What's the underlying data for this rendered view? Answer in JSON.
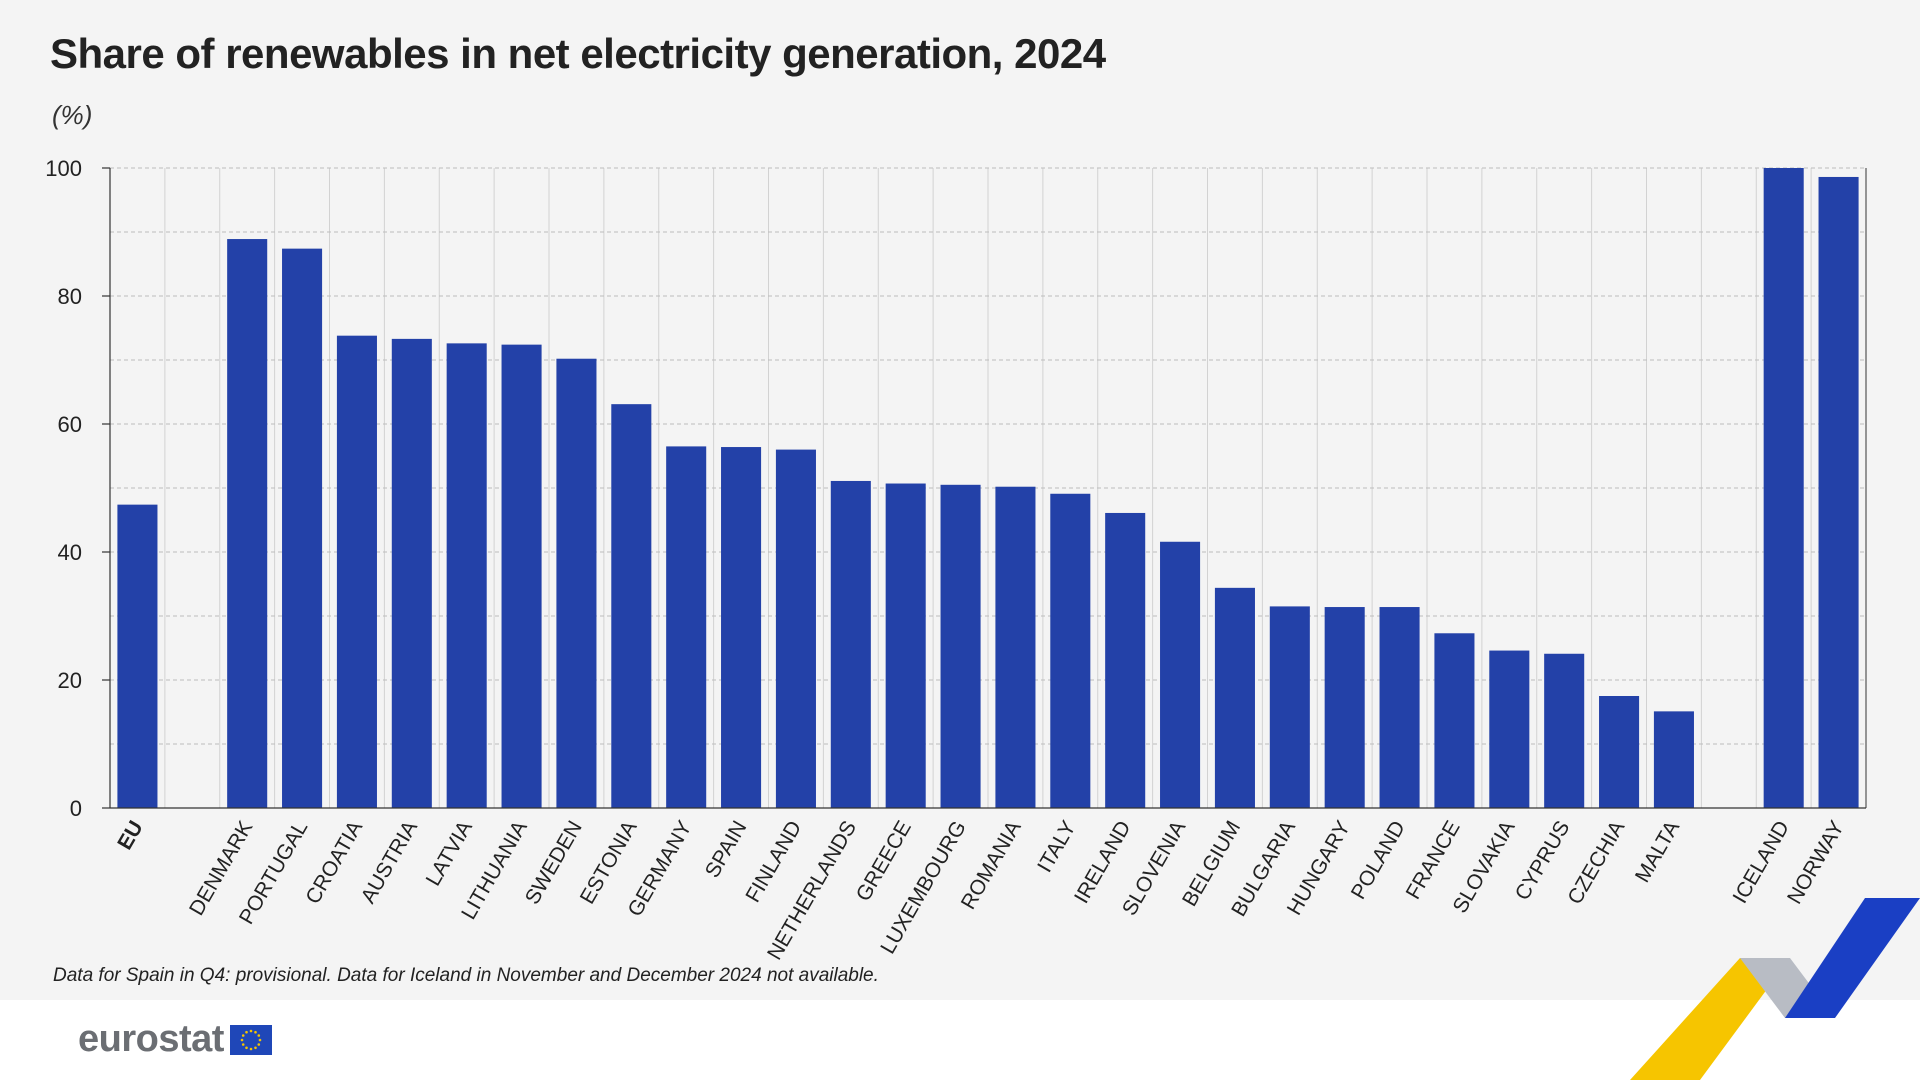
{
  "chart_data": {
    "type": "bar",
    "title": "Share of renewables in net electricity generation, 2024",
    "unit_label": "(%)",
    "ylim": [
      0,
      100
    ],
    "yticks": [
      0,
      20,
      40,
      60,
      80,
      100
    ],
    "grid": true,
    "categories": [
      "EU",
      "DENMARK",
      "PORTUGAL",
      "CROATIA",
      "AUSTRIA",
      "LATVIA",
      "LITHUANIA",
      "SWEDEN",
      "ESTONIA",
      "GERMANY",
      "SPAIN",
      "FINLAND",
      "NETHERLANDS",
      "GREECE",
      "LUXEMBOURG",
      "ROMANIA",
      "ITALY",
      "IRELAND",
      "SLOVENIA",
      "BELGIUM",
      "BULGARIA",
      "HUNGARY",
      "POLAND",
      "FRANCE",
      "SLOVAKIA",
      "CYPRUS",
      "CZECHIA",
      "MALTA",
      "ICELAND",
      "NORWAY"
    ],
    "values": [
      47.4,
      88.9,
      87.4,
      73.8,
      73.3,
      72.6,
      72.4,
      70.2,
      63.1,
      56.5,
      56.4,
      56.0,
      51.1,
      50.7,
      50.5,
      50.2,
      49.1,
      46.1,
      41.6,
      34.4,
      31.5,
      31.4,
      31.4,
      27.3,
      24.6,
      24.1,
      17.5,
      15.1,
      100.0,
      98.6
    ],
    "bar_color": "#2341a8"
  },
  "footnote": "Data for Spain in Q4: provisional. Data for Iceland in November and December 2024 not available.",
  "logo": {
    "text": "eurostat"
  },
  "colors": {
    "bar": "#2341a8",
    "accent_yellow": "#f6c500",
    "accent_blue": "#1a3fc4",
    "logo_grey": "#6b6e73"
  }
}
